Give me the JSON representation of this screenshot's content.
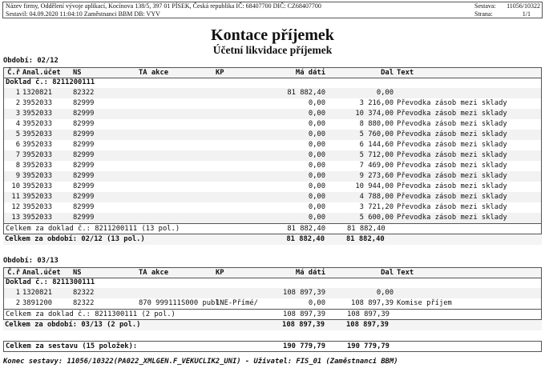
{
  "header": {
    "company": "Název firmy, Oddělení vývoje aplikací, Kocínova 138/5, 397 01 PÍSEK, Česká republika  IČ: 68407700  DIČ: CZ68407700",
    "created": "Sestavil: 04.09.2020 11:04:10 Zaměstnanci BBM  DB: VYV",
    "report_label": "Sestava:",
    "report_value": "11056/10322",
    "page_label": "Strana:",
    "page_value": "1/1"
  },
  "title": "Kontace příjemek",
  "subtitle": "Účetní likvidace příjemek",
  "columns": {
    "n": "Č.ř",
    "a": "Anal.účet",
    "ns": "NS",
    "ta": "TA akce",
    "kp": "KP",
    "md": "Má dáti",
    "d": "Dal",
    "t": "Text"
  },
  "periods": [
    {
      "label": "Období: 02/12",
      "doklad": "Doklad č.: 8211200111",
      "rows": [
        [
          "1",
          "1320821",
          "82322",
          "",
          "",
          "81 882,40",
          "0,00",
          ""
        ],
        [
          "2",
          "3952033",
          "82999",
          "",
          "",
          "0,00",
          "3 216,00",
          "Převodka zásob mezi sklady"
        ],
        [
          "3",
          "3952033",
          "82999",
          "",
          "",
          "0,00",
          "10 374,00",
          "Převodka zásob mezi sklady"
        ],
        [
          "4",
          "3952033",
          "82999",
          "",
          "",
          "0,00",
          "8 880,00",
          "Převodka zásob mezi sklady"
        ],
        [
          "5",
          "3952033",
          "82999",
          "",
          "",
          "0,00",
          "5 760,00",
          "Převodka zásob mezi sklady"
        ],
        [
          "6",
          "3952033",
          "82999",
          "",
          "",
          "0,00",
          "6 144,60",
          "Převodka zásob mezi sklady"
        ],
        [
          "7",
          "3952033",
          "82999",
          "",
          "",
          "0,00",
          "5 712,00",
          "Převodka zásob mezi sklady"
        ],
        [
          "8",
          "3952033",
          "82999",
          "",
          "",
          "0,00",
          "7 469,00",
          "Převodka zásob mezi sklady"
        ],
        [
          "9",
          "3952033",
          "82999",
          "",
          "",
          "0,00",
          "9 273,60",
          "Převodka zásob mezi sklady"
        ],
        [
          "10",
          "3952033",
          "82999",
          "",
          "",
          "0,00",
          "10 944,00",
          "Převodka zásob mezi sklady"
        ],
        [
          "11",
          "3952033",
          "82999",
          "",
          "",
          "0,00",
          "4 788,00",
          "Převodka zásob mezi sklady"
        ],
        [
          "12",
          "3952033",
          "82999",
          "",
          "",
          "0,00",
          "3 721,20",
          "Převodka zásob mezi sklady"
        ],
        [
          "13",
          "3952033",
          "82999",
          "",
          "",
          "0,00",
          "5 600,00",
          "Převodka zásob mezi sklady"
        ]
      ],
      "doklad_total": {
        "label": "Celkem za doklad č.: 8211200111 (13 pol.)",
        "md": "81 882,40",
        "d": "81 882,40"
      },
      "period_total": {
        "label": "Celkem za období: 02/12 (13 pol.)",
        "md": "81 882,40",
        "d": "81 882,40"
      }
    },
    {
      "label": "Období: 03/13",
      "doklad": "Doklad č.: 8211300111",
      "rows": [
        [
          "1",
          "1320821",
          "82322",
          "",
          "",
          "108 897,39",
          "0,00",
          ""
        ],
        [
          "2",
          "3891200",
          "82322",
          "870 999111S000 publ",
          "1NE-Přímé/",
          "0,00",
          "108 897,39",
          "Komise příjem"
        ]
      ],
      "doklad_total": {
        "label": "Celkem za doklad č.: 8211300111 (2 pol.)",
        "md": "108 897,39",
        "d": "108 897,39"
      },
      "period_total": {
        "label": "Celkem za období: 03/13 (2 pol.)",
        "md": "108 897,39",
        "d": "108 897,39"
      }
    }
  ],
  "grand_total": {
    "label": "Celkem za sestavu (15položek):",
    "md": "190 779,79",
    "d": "190 779,79"
  },
  "footer": "Konec sestavy: 11056/10322(PA022_XMLGEN.F_VEKUCLIK2_UNI) - Uživatel: FIS_01 (Zaměstnanci BBM)"
}
